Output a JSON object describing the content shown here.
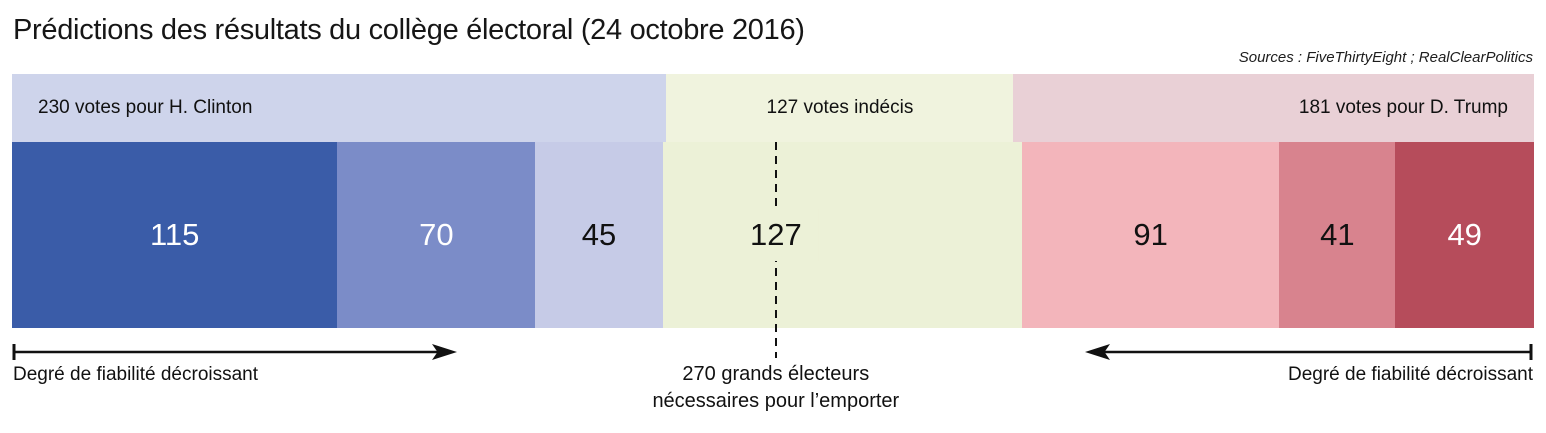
{
  "header": {
    "title": "Prédictions des résultats du collège électoral (24 octobre 2016)",
    "sources": "Sources : FiveThirtyEight ; RealClearPolitics"
  },
  "chart_data": {
    "type": "bar",
    "orientation": "horizontal-stacked",
    "title": "Prédictions des résultats du collège électoral (24 octobre 2016)",
    "unit": "grands électeurs",
    "threshold": {
      "votes": 270,
      "note_line1": "270 grands électeurs",
      "note_line2": "nécessaires pour l’emporter"
    },
    "groups": [
      {
        "name": "Clinton",
        "label": "230 votes pour H. Clinton",
        "total": 230,
        "band_color": "#CED4EB",
        "segments": [
          {
            "value": 115,
            "color": "#3A5CA8",
            "text_color": "#FFFFFF"
          },
          {
            "value": 70,
            "color": "#7B8CC8",
            "text_color": "#FFFFFF"
          },
          {
            "value": 45,
            "color": "#C6CBE7",
            "text_color": "#111111"
          }
        ]
      },
      {
        "name": "Indécis",
        "label": "127 votes indécis",
        "total": 127,
        "band_color": "#F0F3DE",
        "segments": [
          {
            "value": 127,
            "color": "#ECF1D7",
            "text_color": "#111111"
          }
        ]
      },
      {
        "name": "Trump",
        "label": "181 votes pour D. Trump",
        "total": 181,
        "band_color": "#E9D0D6",
        "segments": [
          {
            "value": 91,
            "color": "#F3B5BB",
            "text_color": "#111111"
          },
          {
            "value": 41,
            "color": "#D8838E",
            "text_color": "#111111"
          },
          {
            "value": 49,
            "color": "#B64C5B",
            "text_color": "#FFFFFF"
          }
        ]
      }
    ],
    "annotations": {
      "left_arrow_label": "Degré de fiabilité décroissant",
      "right_arrow_label": "Degré de fiabilité décroissant"
    }
  },
  "colors": {
    "text": "#111111",
    "background": "#FFFFFF"
  }
}
